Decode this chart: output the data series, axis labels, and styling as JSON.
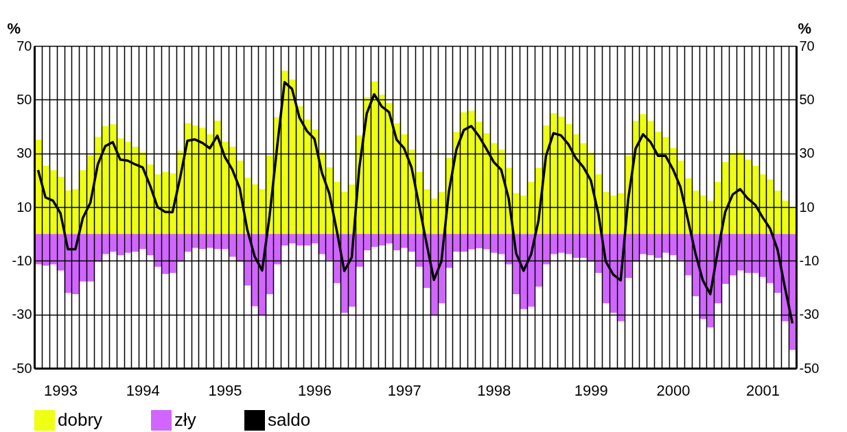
{
  "chart_data": {
    "type": "bar",
    "categories": [
      null,
      null,
      null,
      "1993",
      null,
      null,
      null,
      null,
      null,
      null,
      null,
      null,
      null,
      null,
      "1994",
      null,
      null,
      null,
      null,
      null,
      null,
      null,
      null,
      null,
      null,
      "1995",
      null,
      null,
      null,
      null,
      null,
      null,
      null,
      null,
      null,
      null,
      null,
      "1996",
      null,
      null,
      null,
      null,
      null,
      null,
      null,
      null,
      null,
      null,
      null,
      "1997",
      null,
      null,
      null,
      null,
      null,
      null,
      null,
      null,
      null,
      null,
      null,
      "1998",
      null,
      null,
      null,
      null,
      null,
      null,
      null,
      null,
      null,
      null,
      null,
      null,
      "1999",
      null,
      null,
      null,
      null,
      null,
      null,
      null,
      null,
      null,
      null,
      "2000",
      null,
      null,
      null,
      null,
      null,
      null,
      null,
      null,
      null,
      null,
      null,
      "2001",
      null,
      null,
      null,
      null
    ],
    "series": [
      {
        "name": "dobry",
        "color": "#eeff14",
        "values": [
          35.1,
          25.4,
          23.7,
          21.3,
          16.2,
          16.7,
          23.7,
          29.3,
          36.2,
          40.2,
          40.8,
          35.6,
          34.3,
          32.5,
          30.4,
          25.9,
          22.2,
          23.1,
          22.6,
          31.0,
          41.3,
          40.4,
          39.5,
          37.1,
          42.2,
          34.3,
          32.5,
          27.3,
          20.9,
          18.5,
          16.7,
          29.2,
          43.5,
          60.8,
          57.5,
          47.6,
          42.6,
          38.9,
          30.3,
          24.8,
          19.4,
          15.6,
          18.4,
          36.7,
          50.9,
          56.8,
          51.8,
          48.8,
          41.2,
          37.1,
          31.4,
          23.1,
          16.7,
          13.2,
          15.6,
          28.3,
          38.0,
          45.3,
          45.9,
          41.8,
          37.5,
          33.8,
          31.4,
          24.6,
          15.2,
          14.3,
          19.4,
          24.6,
          40.4,
          45.0,
          43.7,
          40.9,
          37.1,
          33.8,
          30.3,
          22.2,
          15.6,
          14.3,
          15.2,
          29.2,
          42.1,
          44.6,
          42.1,
          38.0,
          36.1,
          32.0,
          27.3,
          20.7,
          16.1,
          14.3,
          12.4,
          19.4,
          26.8,
          30.1,
          30.3,
          27.7,
          25.4,
          22.2,
          20.3,
          16.1,
          12.4,
          9.9
        ]
      },
      {
        "name": "zły",
        "color": "#d066ff",
        "values": [
          -11.3,
          -11.8,
          -11.3,
          -13.6,
          -21.9,
          -22.4,
          -17.7,
          -17.7,
          -10.3,
          -7.5,
          -6.6,
          -7.9,
          -7.0,
          -6.6,
          -5.6,
          -7.9,
          -12.2,
          -14.9,
          -14.5,
          -10.3,
          -6.6,
          -5.2,
          -5.6,
          -5.2,
          -5.6,
          -5.6,
          -8.5,
          -10.3,
          -19.2,
          -26.9,
          -30.3,
          -22.4,
          -11.3,
          -4.3,
          -3.5,
          -4.3,
          -4.3,
          -3.5,
          -7.5,
          -9.8,
          -18.3,
          -29.4,
          -27.1,
          -12.2,
          -6.1,
          -4.8,
          -4.3,
          -3.5,
          -6.1,
          -5.2,
          -6.6,
          -12.2,
          -20.1,
          -30.3,
          -25.8,
          -12.6,
          -6.6,
          -6.6,
          -5.7,
          -5.3,
          -5.7,
          -7.0,
          -7.5,
          -11.3,
          -22.4,
          -28.0,
          -27.1,
          -19.6,
          -11.3,
          -7.5,
          -7.0,
          -7.5,
          -8.9,
          -8.9,
          -10.3,
          -14.5,
          -25.8,
          -29.4,
          -32.5,
          -16.4,
          -10.3,
          -7.5,
          -7.9,
          -8.9,
          -7.0,
          -7.9,
          -9.8,
          -15.4,
          -23.2,
          -31.6,
          -34.8,
          -25.8,
          -18.6,
          -15.4,
          -13.6,
          -14.5,
          -14.5,
          -16.0,
          -18.3,
          -21.9,
          -32.5,
          -43.2
        ]
      },
      {
        "name": "saldo",
        "color": "#000000",
        "type": "line",
        "values": [
          23.8,
          13.6,
          12.4,
          7.7,
          -5.7,
          -5.7,
          6.0,
          11.6,
          25.9,
          32.7,
          34.2,
          27.7,
          27.3,
          25.9,
          24.8,
          18.0,
          10.0,
          8.2,
          8.1,
          20.7,
          34.7,
          35.2,
          33.9,
          31.9,
          36.6,
          28.7,
          24.0,
          17.0,
          1.7,
          -8.4,
          -13.6,
          6.8,
          32.2,
          56.5,
          54.0,
          43.3,
          38.3,
          35.4,
          22.8,
          15.0,
          1.1,
          -13.8,
          -8.7,
          24.5,
          44.8,
          52.0,
          47.5,
          45.3,
          35.1,
          31.9,
          24.8,
          10.9,
          -3.4,
          -17.1,
          -10.2,
          15.7,
          31.4,
          38.7,
          40.2,
          36.5,
          31.8,
          26.8,
          23.9,
          13.3,
          -7.2,
          -13.7,
          -7.7,
          5.0,
          29.1,
          37.5,
          36.7,
          33.4,
          28.2,
          24.9,
          20.0,
          7.7,
          -10.2,
          -15.1,
          -17.3,
          12.8,
          31.8,
          37.1,
          34.2,
          29.1,
          29.1,
          24.1,
          17.5,
          5.3,
          -7.1,
          -17.3,
          -22.4,
          -6.4,
          8.2,
          14.7,
          16.7,
          13.2,
          10.9,
          6.2,
          2.0,
          -5.8,
          -20.1,
          -33.3
        ]
      }
    ],
    "ylabel": "%",
    "y2label": "%",
    "ylim": [
      -50,
      70
    ],
    "yticks": [
      -50,
      -30,
      -10,
      10,
      30,
      50,
      70
    ],
    "y2lim": [
      -50,
      70
    ],
    "y2ticks": [
      -50,
      -30,
      -10,
      10,
      30,
      50,
      70
    ],
    "grid": true,
    "legend": "bottom",
    "stacked": true
  }
}
